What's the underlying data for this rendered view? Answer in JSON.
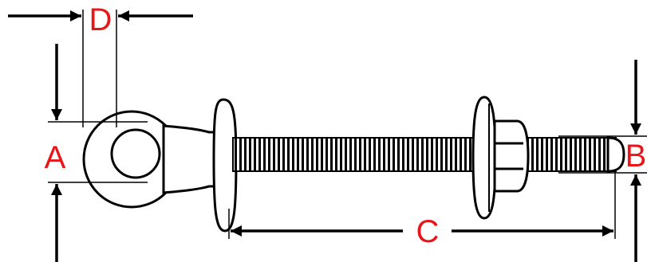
{
  "labels": {
    "a": "A",
    "b": "B",
    "c": "C",
    "d": "D"
  },
  "colors": {
    "label": "#e8161b",
    "line": "#000000",
    "background": "#ffffff"
  }
}
